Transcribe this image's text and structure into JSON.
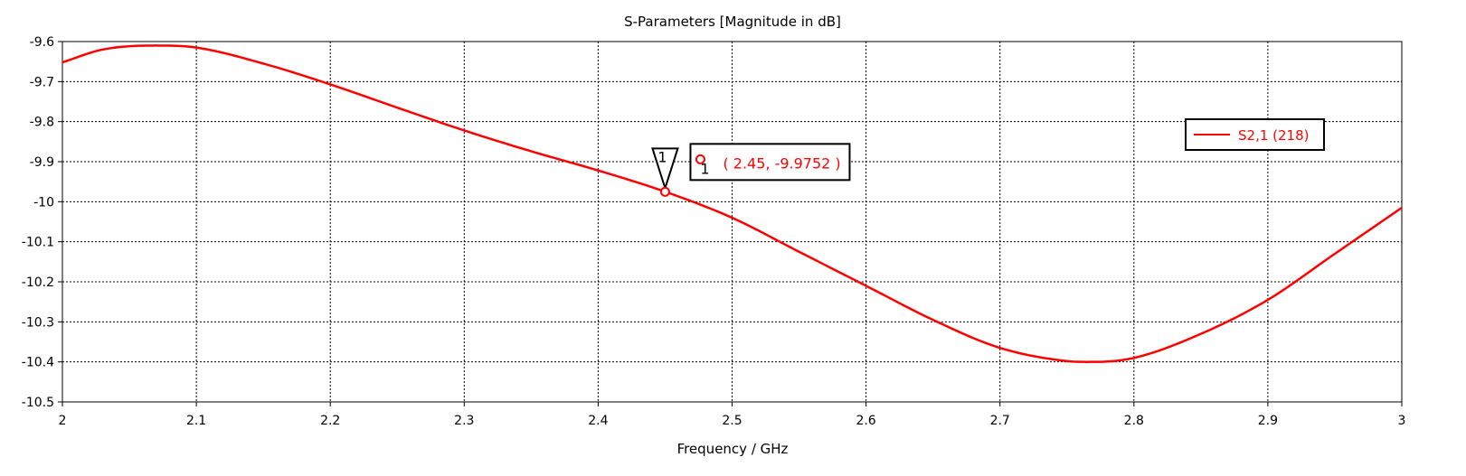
{
  "chart_data": {
    "type": "line",
    "title": "S-Parameters [Magnitude in dB]",
    "xlabel": "Frequency / GHz",
    "ylabel": "",
    "xlim": [
      2,
      3
    ],
    "ylim": [
      -10.5,
      -9.6
    ],
    "grid": true,
    "x_ticks": [
      "2",
      "2.1",
      "2.2",
      "2.3",
      "2.4",
      "2.5",
      "2.6",
      "2.7",
      "2.8",
      "2.9",
      "3"
    ],
    "y_ticks": [
      "-9.6",
      "-9.7",
      "-9.8",
      "-9.9",
      "-10",
      "-10.1",
      "-10.2",
      "-10.3",
      "-10.4",
      "-10.5"
    ],
    "legend": {
      "position": "top-right",
      "entries": [
        "S2,1 (218)"
      ]
    },
    "series": [
      {
        "name": "S2,1 (218)",
        "color": "#ff0000",
        "x": [
          2.0,
          2.03,
          2.07,
          2.1,
          2.15,
          2.2,
          2.25,
          2.3,
          2.35,
          2.4,
          2.45,
          2.5,
          2.55,
          2.6,
          2.65,
          2.7,
          2.75,
          2.77,
          2.8,
          2.85,
          2.9,
          2.95,
          3.0
        ],
        "y": [
          -9.652,
          -9.62,
          -9.61,
          -9.615,
          -9.655,
          -9.707,
          -9.765,
          -9.822,
          -9.874,
          -9.922,
          -9.975,
          -10.04,
          -10.125,
          -10.21,
          -10.295,
          -10.365,
          -10.398,
          -10.4,
          -10.39,
          -10.33,
          -10.245,
          -10.13,
          -10.015
        ]
      }
    ],
    "markers": [
      {
        "id": "1",
        "x": 2.45,
        "y": -9.9752,
        "label": "( 2.45, -9.9752 )"
      }
    ]
  }
}
